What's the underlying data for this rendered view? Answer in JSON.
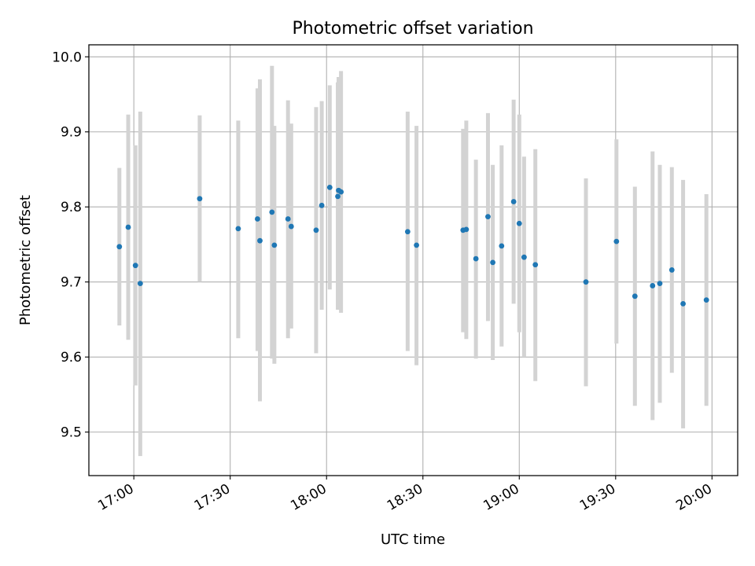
{
  "chart_data": {
    "type": "scatter",
    "title": "Photometric offset variation",
    "xlabel": "UTC time",
    "ylabel": "Photometric offset",
    "xlim": [
      "16:46",
      "20:08"
    ],
    "ylim": [
      9.442,
      10.016
    ],
    "x_ticks": [
      "17:00",
      "17:30",
      "18:00",
      "18:30",
      "19:00",
      "19:30",
      "20:00"
    ],
    "y_ticks": [
      "9.5",
      "9.6",
      "9.7",
      "9.8",
      "9.9",
      "10.0"
    ],
    "grid": true,
    "marker_color": "#1f77b4",
    "errorbar_color": "#d3d3d3",
    "points": [
      {
        "time": "16:55:30",
        "y": 9.747,
        "err_low": 9.642,
        "err_high": 9.852
      },
      {
        "time": "16:58:15",
        "y": 9.773,
        "err_low": 9.623,
        "err_high": 9.923
      },
      {
        "time": "17:00:30",
        "y": 9.722,
        "err_low": 9.562,
        "err_high": 9.882
      },
      {
        "time": "17:02:00",
        "y": 9.698,
        "err_low": 9.468,
        "err_high": 9.927
      },
      {
        "time": "17:20:30",
        "y": 9.811,
        "err_low": 9.7,
        "err_high": 9.922
      },
      {
        "time": "17:32:30",
        "y": 9.771,
        "err_low": 9.625,
        "err_high": 9.915
      },
      {
        "time": "17:38:30",
        "y": 9.784,
        "err_low": 9.608,
        "err_high": 9.958
      },
      {
        "time": "17:39:15",
        "y": 9.755,
        "err_low": 9.541,
        "err_high": 9.97
      },
      {
        "time": "17:43:00",
        "y": 9.793,
        "err_low": 9.598,
        "err_high": 9.988
      },
      {
        "time": "17:43:45",
        "y": 9.749,
        "err_low": 9.591,
        "err_high": 9.908
      },
      {
        "time": "17:48:00",
        "y": 9.784,
        "err_low": 9.625,
        "err_high": 9.942
      },
      {
        "time": "17:49:00",
        "y": 9.774,
        "err_low": 9.638,
        "err_high": 9.911
      },
      {
        "time": "17:56:45",
        "y": 9.769,
        "err_low": 9.605,
        "err_high": 9.933
      },
      {
        "time": "17:58:30",
        "y": 9.802,
        "err_low": 9.663,
        "err_high": 9.941
      },
      {
        "time": "18:01:00",
        "y": 9.826,
        "err_low": 9.69,
        "err_high": 9.962
      },
      {
        "time": "18:03:30",
        "y": 9.814,
        "err_low": 9.663,
        "err_high": 9.966
      },
      {
        "time": "18:03:45",
        "y": 9.822,
        "err_low": 9.663,
        "err_high": 9.973
      },
      {
        "time": "18:04:30",
        "y": 9.82,
        "err_low": 9.659,
        "err_high": 9.981
      },
      {
        "time": "18:25:15",
        "y": 9.767,
        "err_low": 9.608,
        "err_high": 9.927
      },
      {
        "time": "18:28:00",
        "y": 9.749,
        "err_low": 9.589,
        "err_high": 9.908
      },
      {
        "time": "18:42:30",
        "y": 9.769,
        "err_low": 9.633,
        "err_high": 9.904
      },
      {
        "time": "18:43:30",
        "y": 9.77,
        "err_low": 9.624,
        "err_high": 9.915
      },
      {
        "time": "18:46:30",
        "y": 9.731,
        "err_low": 9.598,
        "err_high": 9.863
      },
      {
        "time": "18:50:15",
        "y": 9.787,
        "err_low": 9.648,
        "err_high": 9.925
      },
      {
        "time": "18:51:45",
        "y": 9.726,
        "err_low": 9.596,
        "err_high": 9.856
      },
      {
        "time": "18:54:30",
        "y": 9.748,
        "err_low": 9.614,
        "err_high": 9.882
      },
      {
        "time": "18:58:15",
        "y": 9.807,
        "err_low": 9.671,
        "err_high": 9.943
      },
      {
        "time": "19:00:00",
        "y": 9.778,
        "err_low": 9.633,
        "err_high": 9.923
      },
      {
        "time": "19:01:30",
        "y": 9.733,
        "err_low": 9.6,
        "err_high": 9.867
      },
      {
        "time": "19:05:00",
        "y": 9.723,
        "err_low": 9.568,
        "err_high": 9.877
      },
      {
        "time": "19:20:45",
        "y": 9.7,
        "err_low": 9.561,
        "err_high": 9.838
      },
      {
        "time": "19:30:15",
        "y": 9.754,
        "err_low": 9.618,
        "err_high": 9.89
      },
      {
        "time": "19:36:00",
        "y": 9.681,
        "err_low": 9.535,
        "err_high": 9.827
      },
      {
        "time": "19:41:30",
        "y": 9.695,
        "err_low": 9.516,
        "err_high": 9.874
      },
      {
        "time": "19:43:45",
        "y": 9.698,
        "err_low": 9.539,
        "err_high": 9.856
      },
      {
        "time": "19:47:30",
        "y": 9.716,
        "err_low": 9.579,
        "err_high": 9.853
      },
      {
        "time": "19:51:00",
        "y": 9.671,
        "err_low": 9.505,
        "err_high": 9.836
      },
      {
        "time": "19:58:15",
        "y": 9.676,
        "err_low": 9.535,
        "err_high": 9.817
      }
    ]
  }
}
